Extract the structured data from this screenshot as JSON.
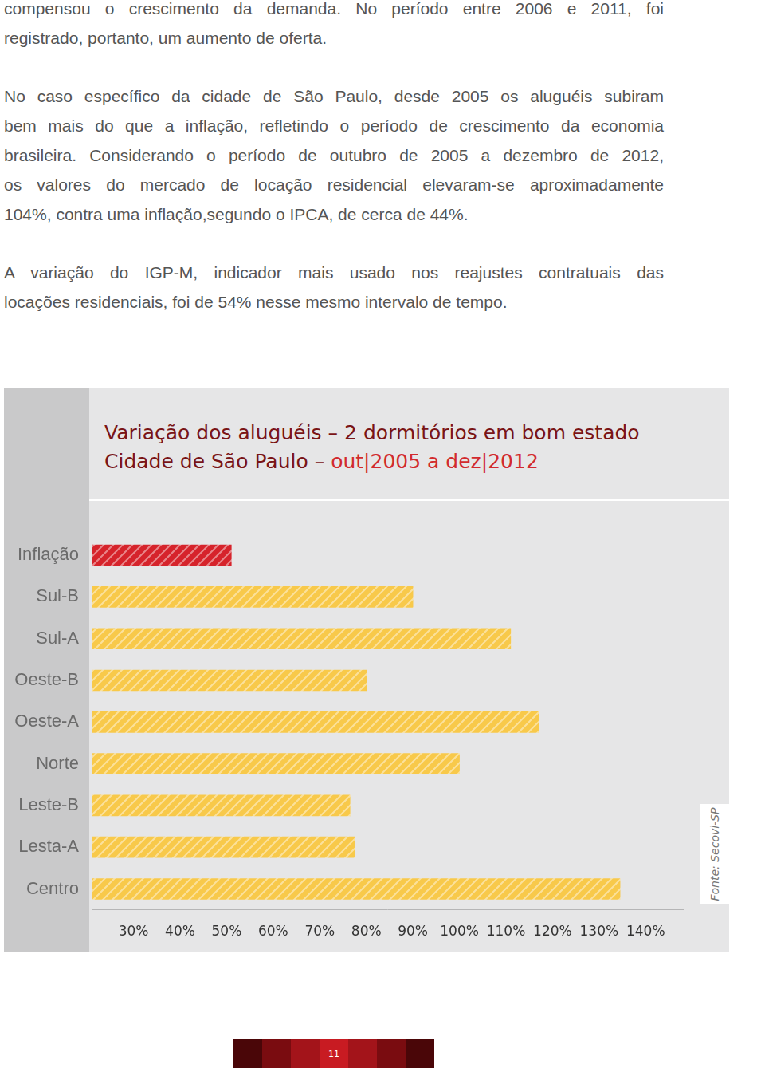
{
  "text": {
    "paragraphs": [
      [
        "compensou o crescimento da demanda. No período entre 2006 e 2011, foi",
        "registrado, portanto, um aumento de oferta."
      ],
      [
        "No caso específico da cidade de São Paulo, desde 2005 os aluguéis subiram",
        "bem mais do que a inflação, refletindo o período de crescimento da economia",
        "brasileira. Considerando o período de outubro de 2005 a dezembro de 2012,",
        "os valores do mercado de locação residencial elevaram-se aproximadamente",
        "104%, contra uma inflação,segundo o IPCA, de cerca de 44%."
      ],
      [
        "A variação do IGP-M, indicador mais usado nos reajustes contratuais das",
        "locações residenciais, foi de 54% nesse mesmo intervalo de tempo."
      ]
    ]
  },
  "chart_data": {
    "type": "bar",
    "orientation": "horizontal",
    "title": "Variação dos aluguéis – 2 dormitórios em bom estado",
    "subtitle": [
      "Cidade de São Paulo –",
      "out|2005 a dez|2012"
    ],
    "annotations": [
      "Fonte: Secovi-SP"
    ],
    "categories": [
      "Inflação",
      "Sul-B",
      "Sul-A",
      "Oeste-B",
      "Oeste-A",
      "Norte",
      "Leste-B",
      "Lesta-A",
      "Centro"
    ],
    "values": [
      51,
      90,
      111,
      80,
      117,
      100,
      76.5,
      77.5,
      134.5
    ],
    "colors": [
      "#d6232b",
      "#f8c94a",
      "#f8c94a",
      "#f8c94a",
      "#f8c94a",
      "#f8c94a",
      "#f8c94a",
      "#f8c94a",
      "#f8c94a"
    ],
    "xlim": [
      21,
      148
    ],
    "xticks": [
      {
        "value": 30,
        "label": "30%"
      },
      {
        "value": 40,
        "label": "40%"
      },
      {
        "value": 50,
        "label": "50%"
      },
      {
        "value": 60,
        "label": "60%"
      },
      {
        "value": 70,
        "label": "70%"
      },
      {
        "value": 80,
        "label": "80%"
      },
      {
        "value": 90,
        "label": "90%"
      },
      {
        "value": 100,
        "label": "100%"
      },
      {
        "value": 110,
        "label": "110%"
      },
      {
        "value": 120,
        "label": "120%"
      },
      {
        "value": 130,
        "label": "130%"
      },
      {
        "value": 140,
        "label": "140%"
      }
    ],
    "grid": false,
    "data_labels": false
  },
  "footer": {
    "page_number": 11
  }
}
